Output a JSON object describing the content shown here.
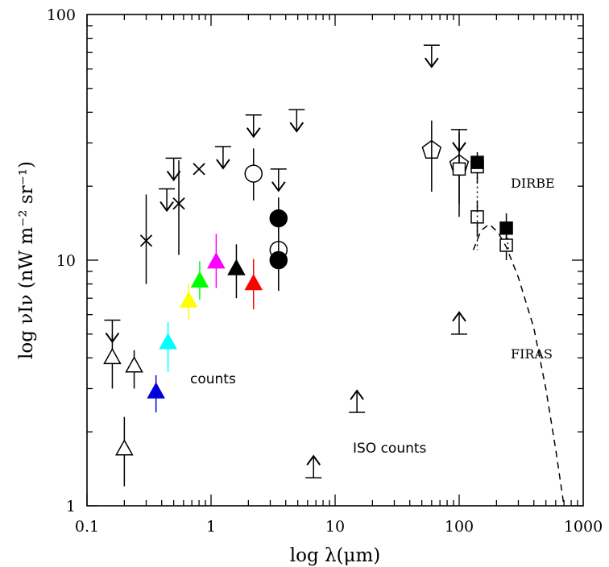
{
  "chart_data": {
    "type": "scatter",
    "title": "",
    "xlabel": "log λ(μm)",
    "ylabel": "log νIν (nW m⁻² sr⁻¹)",
    "xscale": "log",
    "yscale": "log",
    "xlim": [
      0.1,
      1000
    ],
    "ylim": [
      1,
      100
    ],
    "x_tick_labels": [
      "0.1",
      "1",
      "10",
      "100",
      "1000"
    ],
    "y_tick_labels": [
      "1",
      "10",
      "100"
    ],
    "annotations": {
      "counts": "counts",
      "iso_counts": "ISO counts",
      "dirbe": "DIRBE",
      "firas": "FIRAS"
    },
    "series": [
      {
        "marker": "upper-limit-arrow",
        "color": "#000000",
        "points": [
          {
            "x": 0.16,
            "y": 5.7
          },
          {
            "x": 0.44,
            "y": 19.5
          },
          {
            "x": 0.5,
            "y": 26
          },
          {
            "x": 1.25,
            "y": 29
          },
          {
            "x": 2.2,
            "y": 39
          },
          {
            "x": 3.5,
            "y": 23.5
          },
          {
            "x": 4.9,
            "y": 41
          },
          {
            "x": 60,
            "y": 75
          },
          {
            "x": 100,
            "y": 34
          }
        ]
      },
      {
        "marker": "lower-limit-arrow",
        "color": "#000000",
        "points": [
          {
            "x": 6.7,
            "y": 1.3
          },
          {
            "x": 15,
            "y": 2.4
          },
          {
            "x": 100,
            "y": 5.0
          }
        ]
      },
      {
        "marker": "cross",
        "color": "#000000",
        "points": [
          {
            "x": 0.3,
            "y": 12.0,
            "ylo": 8.0,
            "yhi": 18.5
          },
          {
            "x": 0.55,
            "y": 17.0,
            "ylo": 10.5,
            "yhi": 25.5
          },
          {
            "x": 0.8,
            "y": 23.5,
            "ylo": 23.5,
            "yhi": 23.5
          }
        ]
      },
      {
        "marker": "open-triangle",
        "color": "#000000",
        "points": [
          {
            "x": 0.16,
            "y": 4.0,
            "ylo": 3.0,
            "yhi": 5.0
          },
          {
            "x": 0.2,
            "y": 1.7,
            "ylo": 1.2,
            "yhi": 2.3
          },
          {
            "x": 0.24,
            "y": 3.7,
            "ylo": 3.0,
            "yhi": 4.3
          }
        ]
      },
      {
        "marker": "filled-triangle",
        "points": [
          {
            "x": 0.36,
            "y": 2.9,
            "ylo": 2.4,
            "yhi": 3.4,
            "color": "#0000dd"
          },
          {
            "x": 0.45,
            "y": 4.6,
            "ylo": 3.5,
            "yhi": 5.6,
            "color": "#00ffff"
          },
          {
            "x": 0.66,
            "y": 6.8,
            "ylo": 5.7,
            "yhi": 8.0,
            "color": "#ffff00"
          },
          {
            "x": 0.81,
            "y": 8.2,
            "ylo": 6.9,
            "yhi": 9.9,
            "color": "#00ff00"
          },
          {
            "x": 1.1,
            "y": 9.8,
            "ylo": 7.7,
            "yhi": 12.8,
            "color": "#ff00ff"
          },
          {
            "x": 1.6,
            "y": 9.2,
            "ylo": 7.0,
            "yhi": 11.6,
            "color": "#000000"
          },
          {
            "x": 2.2,
            "y": 8.0,
            "ylo": 6.3,
            "yhi": 10.1,
            "color": "#ff0000"
          }
        ]
      },
      {
        "marker": "open-circle",
        "color": "#000000",
        "points": [
          {
            "x": 2.2,
            "y": 22.5,
            "ylo": 17.5,
            "yhi": 28.5
          },
          {
            "x": 3.5,
            "y": 11.0,
            "ylo": 7.5,
            "yhi": 15.5
          }
        ]
      },
      {
        "marker": "filled-circle",
        "color": "#000000",
        "points": [
          {
            "x": 3.5,
            "y": 14.8,
            "ylo": 12.0,
            "yhi": 18.0
          },
          {
            "x": 3.5,
            "y": 10.0,
            "ylo": 7.5,
            "yhi": 12.5
          }
        ]
      },
      {
        "marker": "open-pentagon",
        "color": "#000000",
        "points": [
          {
            "x": 60,
            "y": 28.0,
            "ylo": 19.0,
            "yhi": 37.0
          },
          {
            "x": 100,
            "y": 24.5,
            "ylo": 15.0,
            "yhi": 33.0
          }
        ]
      },
      {
        "marker": "open-square",
        "color": "#000000",
        "points": [
          {
            "x": 100,
            "y": 23.5,
            "ylo": 17.0,
            "yhi": 30.0
          },
          {
            "x": 140,
            "y": 24.0,
            "ylo": 20.5,
            "yhi": 27.5
          },
          {
            "x": 140,
            "y": 15.0,
            "ylo": 12.5,
            "yhi": 17.5
          },
          {
            "x": 240,
            "y": 11.5,
            "ylo": 10.0,
            "yhi": 13.0
          }
        ]
      },
      {
        "marker": "filled-square",
        "color": "#000000",
        "points": [
          {
            "x": 140,
            "y": 25.0
          },
          {
            "x": 240,
            "y": 13.5,
            "ylo": 12.2,
            "yhi": 15.5
          }
        ]
      },
      {
        "marker": "dashed-line",
        "color": "#000000",
        "points": [
          {
            "x": 130,
            "y": 11.0
          },
          {
            "x": 150,
            "y": 13.2
          },
          {
            "x": 175,
            "y": 14.0
          },
          {
            "x": 205,
            "y": 13.0
          },
          {
            "x": 240,
            "y": 11.3
          },
          {
            "x": 300,
            "y": 8.5
          },
          {
            "x": 400,
            "y": 5.3
          },
          {
            "x": 500,
            "y": 3.0
          },
          {
            "x": 600,
            "y": 1.7
          },
          {
            "x": 700,
            "y": 1.0
          }
        ]
      },
      {
        "marker": "dotted-line",
        "color": "#000000",
        "points": [
          {
            "x": 140,
            "y": 25.0
          },
          {
            "x": 140,
            "y": 11.0
          }
        ]
      },
      {
        "marker": "dotted-line",
        "color": "#000000",
        "points": [
          {
            "x": 240,
            "y": 13.5
          },
          {
            "x": 250,
            "y": 10.8
          }
        ]
      }
    ]
  }
}
